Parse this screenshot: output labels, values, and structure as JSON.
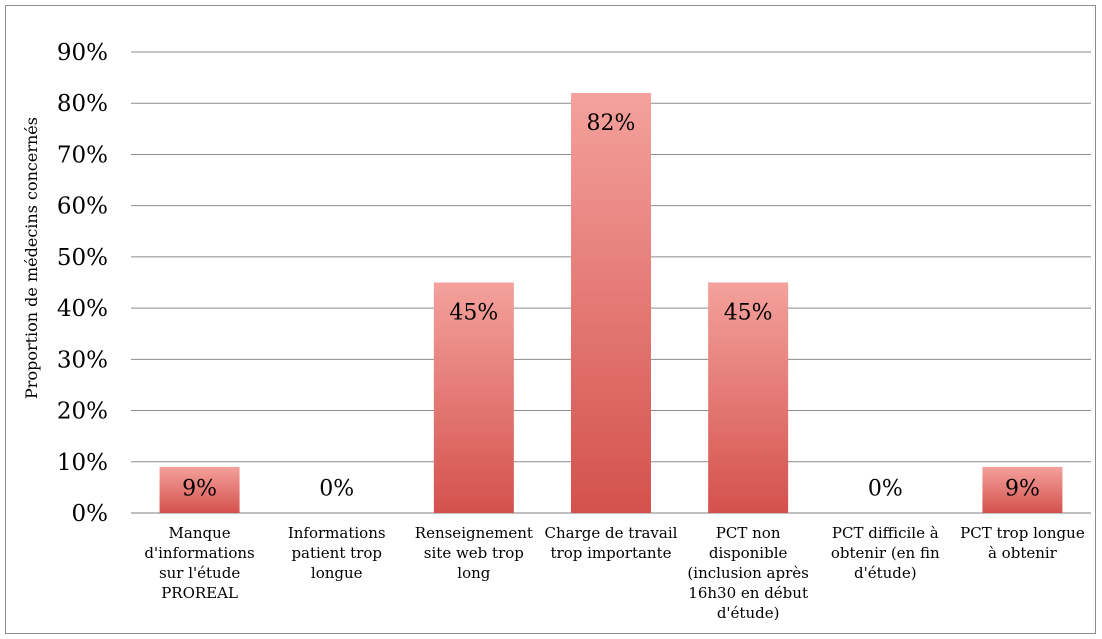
{
  "chart_data": {
    "type": "bar",
    "title": "",
    "xlabel": "",
    "ylabel": "Proportion de médecins concernés",
    "ylim": [
      0,
      90
    ],
    "yticks": [
      0,
      10,
      20,
      30,
      40,
      50,
      60,
      70,
      80,
      90
    ],
    "ytick_labels": [
      "0%",
      "10%",
      "20%",
      "30%",
      "40%",
      "50%",
      "60%",
      "70%",
      "80%",
      "90%"
    ],
    "grid": true,
    "legend": "none",
    "bar_color_top": "#f4a19c",
    "bar_color_bottom": "#d4514d",
    "categories": [
      [
        "Manque",
        "d'informations",
        "sur l'étude",
        "PROREAL"
      ],
      [
        "Informations",
        "patient trop",
        "longue"
      ],
      [
        "Renseignement",
        "site web trop",
        "long"
      ],
      [
        "Charge de travail",
        "trop importante"
      ],
      [
        "PCT non",
        "disponible",
        "(inclusion après",
        "16h30 en début",
        "d'étude)"
      ],
      [
        "PCT difficile à",
        "obtenir (en fin",
        "d'étude)"
      ],
      [
        "PCT trop longue",
        "à obtenir"
      ]
    ],
    "values": [
      9,
      0,
      45,
      82,
      45,
      0,
      9
    ],
    "data_labels": [
      "9%",
      "0%",
      "45%",
      "82%",
      "45%",
      "0%",
      "9%"
    ]
  }
}
